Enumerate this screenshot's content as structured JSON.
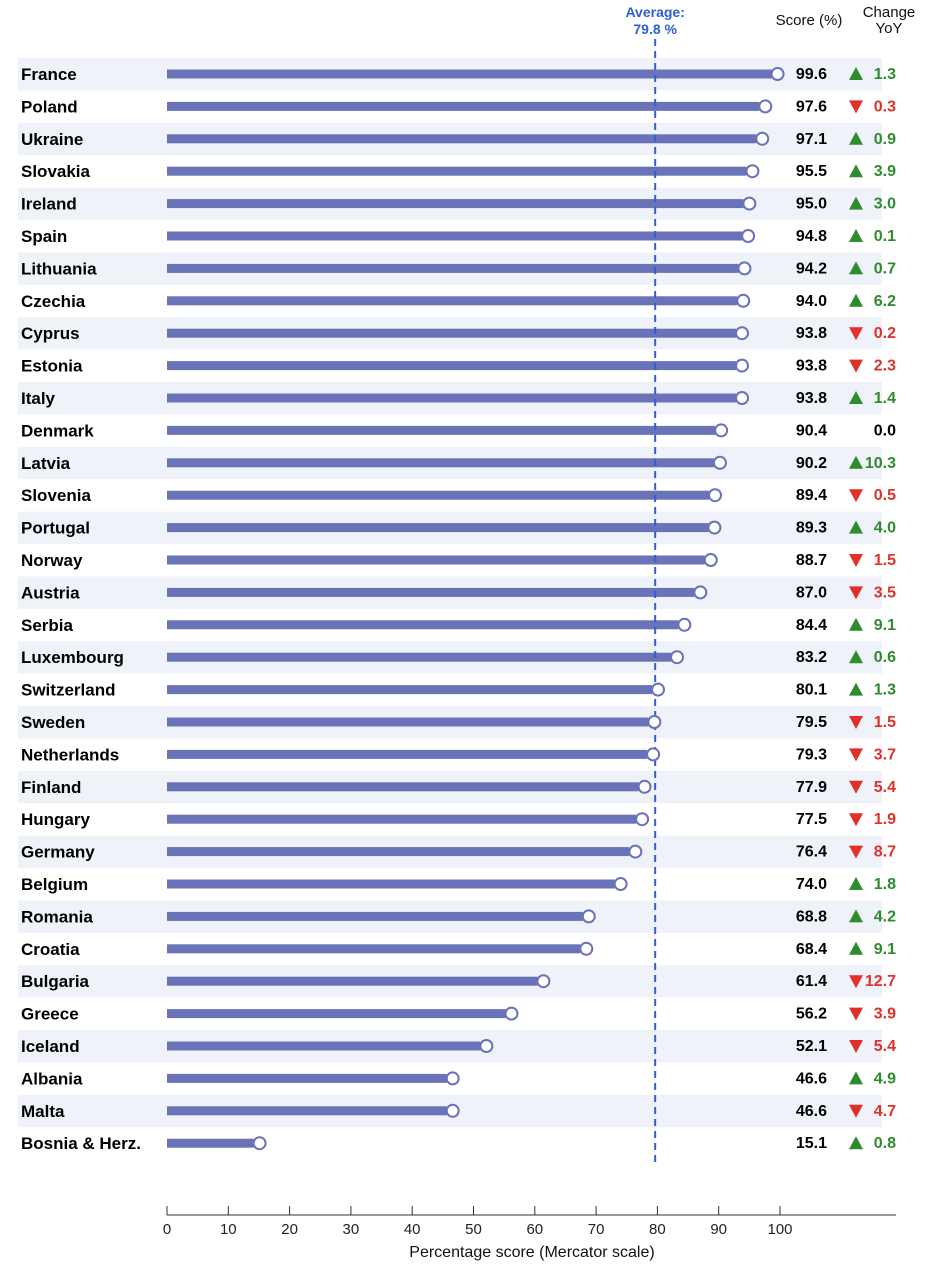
{
  "chart_data": {
    "type": "bar",
    "xlabel": "Percentage score (Mercator scale)",
    "xlim": [
      0,
      100
    ],
    "x_ticks": [
      0,
      10,
      20,
      30,
      40,
      50,
      60,
      70,
      80,
      90,
      100
    ],
    "average": {
      "label": "Average:",
      "value_label": "79.8 %",
      "value": 79.8
    },
    "columns": {
      "score_header": "Score (%)",
      "change_header_line1": "Change",
      "change_header_line2": "YoY"
    },
    "colors": {
      "bar": "#6a72b8",
      "up": "#2e8b2e",
      "down": "#e0302a",
      "neutral": "#000000",
      "average_line": "#2f5fd0",
      "stripe": "#f0f2f9"
    },
    "rows": [
      {
        "country": "France",
        "score": 99.6,
        "score_label": "99.6",
        "change_dir": "up",
        "change_label": "1.3"
      },
      {
        "country": "Poland",
        "score": 97.6,
        "score_label": "97.6",
        "change_dir": "down",
        "change_label": "0.3"
      },
      {
        "country": "Ukraine",
        "score": 97.1,
        "score_label": "97.1",
        "change_dir": "up",
        "change_label": "0.9"
      },
      {
        "country": "Slovakia",
        "score": 95.5,
        "score_label": "95.5",
        "change_dir": "up",
        "change_label": "3.9"
      },
      {
        "country": "Ireland",
        "score": 95.0,
        "score_label": "95.0",
        "change_dir": "up",
        "change_label": "3.0"
      },
      {
        "country": "Spain",
        "score": 94.8,
        "score_label": "94.8",
        "change_dir": "up",
        "change_label": "0.1"
      },
      {
        "country": "Lithuania",
        "score": 94.2,
        "score_label": "94.2",
        "change_dir": "up",
        "change_label": "0.7"
      },
      {
        "country": "Czechia",
        "score": 94.0,
        "score_label": "94.0",
        "change_dir": "up",
        "change_label": "6.2"
      },
      {
        "country": "Cyprus",
        "score": 93.8,
        "score_label": "93.8",
        "change_dir": "down",
        "change_label": "0.2"
      },
      {
        "country": "Estonia",
        "score": 93.8,
        "score_label": "93.8",
        "change_dir": "down",
        "change_label": "2.3"
      },
      {
        "country": "Italy",
        "score": 93.8,
        "score_label": "93.8",
        "change_dir": "up",
        "change_label": "1.4"
      },
      {
        "country": "Denmark",
        "score": 90.4,
        "score_label": "90.4",
        "change_dir": "none",
        "change_label": "0.0"
      },
      {
        "country": "Latvia",
        "score": 90.2,
        "score_label": "90.2",
        "change_dir": "up",
        "change_label": "10.3"
      },
      {
        "country": "Slovenia",
        "score": 89.4,
        "score_label": "89.4",
        "change_dir": "down",
        "change_label": "0.5"
      },
      {
        "country": "Portugal",
        "score": 89.3,
        "score_label": "89.3",
        "change_dir": "up",
        "change_label": "4.0"
      },
      {
        "country": "Norway",
        "score": 88.7,
        "score_label": "88.7",
        "change_dir": "down",
        "change_label": "1.5"
      },
      {
        "country": "Austria",
        "score": 87.0,
        "score_label": "87.0",
        "change_dir": "down",
        "change_label": "3.5"
      },
      {
        "country": "Serbia",
        "score": 84.4,
        "score_label": "84.4",
        "change_dir": "up",
        "change_label": "9.1"
      },
      {
        "country": "Luxembourg",
        "score": 83.2,
        "score_label": "83.2",
        "change_dir": "up",
        "change_label": "0.6"
      },
      {
        "country": "Switzerland",
        "score": 80.1,
        "score_label": "80.1",
        "change_dir": "up",
        "change_label": "1.3"
      },
      {
        "country": "Sweden",
        "score": 79.5,
        "score_label": "79.5",
        "change_dir": "down",
        "change_label": "1.5"
      },
      {
        "country": "Netherlands",
        "score": 79.3,
        "score_label": "79.3",
        "change_dir": "down",
        "change_label": "3.7"
      },
      {
        "country": "Finland",
        "score": 77.9,
        "score_label": "77.9",
        "change_dir": "down",
        "change_label": "5.4"
      },
      {
        "country": "Hungary",
        "score": 77.5,
        "score_label": "77.5",
        "change_dir": "down",
        "change_label": "1.9"
      },
      {
        "country": "Germany",
        "score": 76.4,
        "score_label": "76.4",
        "change_dir": "down",
        "change_label": "8.7"
      },
      {
        "country": "Belgium",
        "score": 74.0,
        "score_label": "74.0",
        "change_dir": "up",
        "change_label": "1.8"
      },
      {
        "country": "Romania",
        "score": 68.8,
        "score_label": "68.8",
        "change_dir": "up",
        "change_label": "4.2"
      },
      {
        "country": "Croatia",
        "score": 68.4,
        "score_label": "68.4",
        "change_dir": "up",
        "change_label": "9.1"
      },
      {
        "country": "Bulgaria",
        "score": 61.4,
        "score_label": "61.4",
        "change_dir": "down",
        "change_label": "12.7"
      },
      {
        "country": "Greece",
        "score": 56.2,
        "score_label": "56.2",
        "change_dir": "down",
        "change_label": "3.9"
      },
      {
        "country": "Iceland",
        "score": 52.1,
        "score_label": "52.1",
        "change_dir": "down",
        "change_label": "5.4"
      },
      {
        "country": "Albania",
        "score": 46.6,
        "score_label": "46.6",
        "change_dir": "up",
        "change_label": "4.9"
      },
      {
        "country": "Malta",
        "score": 46.6,
        "score_label": "46.6",
        "change_dir": "down",
        "change_label": "4.7"
      },
      {
        "country": "Bosnia & Herz.",
        "score": 15.1,
        "score_label": "15.1",
        "change_dir": "up",
        "change_label": "0.8"
      }
    ]
  }
}
